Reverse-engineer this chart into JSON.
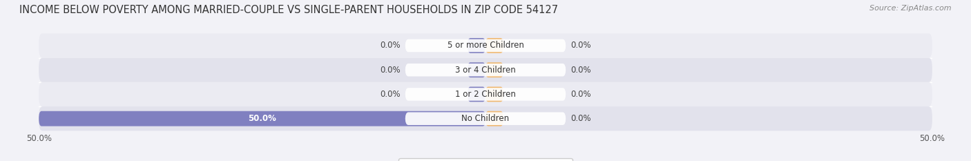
{
  "title": "INCOME BELOW POVERTY AMONG MARRIED-COUPLE VS SINGLE-PARENT HOUSEHOLDS IN ZIP CODE 54127",
  "source": "Source: ZipAtlas.com",
  "categories": [
    "No Children",
    "1 or 2 Children",
    "3 or 4 Children",
    "5 or more Children"
  ],
  "married_values": [
    50.0,
    0.0,
    0.0,
    0.0
  ],
  "single_values": [
    0.0,
    0.0,
    0.0,
    0.0
  ],
  "married_color": "#8080c0",
  "single_color": "#f0b870",
  "bg_color": "#f2f2f7",
  "row_bg_light": "#ebebf2",
  "row_bg_dark": "#e2e2ec",
  "axis_limit": 50.0,
  "title_fontsize": 10.5,
  "label_fontsize": 8.5,
  "cat_fontsize": 8.5,
  "tick_fontsize": 8.5,
  "legend_fontsize": 8.5,
  "figsize": [
    14.06,
    2.33
  ],
  "dpi": 100
}
